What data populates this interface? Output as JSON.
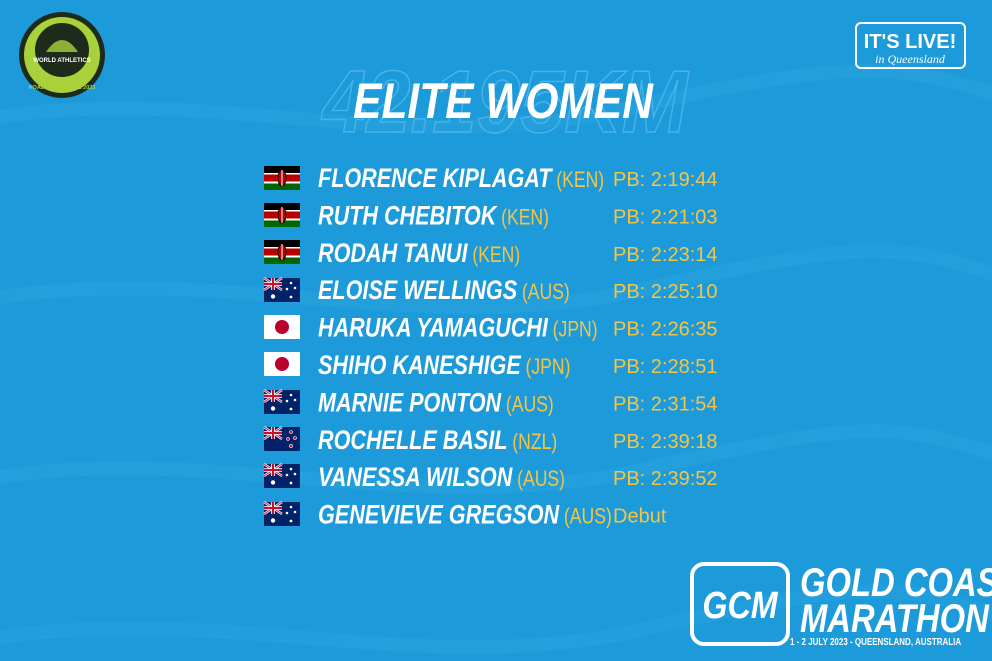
{
  "logos": {
    "world_athletics": {
      "name": "WORLD ATHLETICS",
      "label": "ROAD RACE LABEL 2023"
    },
    "its_live": {
      "headline": "IT'S LIVE!",
      "tagline": "in Queensland"
    }
  },
  "background_text": "42.195KM",
  "title": "ELITE WOMEN",
  "athletes": [
    {
      "name": "FLORENCE KIPLAGAT",
      "country": "(KEN)",
      "pb": "PB: 2:19:44"
    },
    {
      "name": "RUTH CHEBITOK",
      "country": "(KEN)",
      "pb": "PB: 2:21:03"
    },
    {
      "name": "RODAH TANUI",
      "country": "(KEN)",
      "pb": "PB: 2:23:14"
    },
    {
      "name": "ELOISE WELLINGS",
      "country": "(AUS)",
      "pb": "PB: 2:25:10"
    },
    {
      "name": "HARUKA YAMAGUCHI",
      "country": "(JPN)",
      "pb": "PB: 2:26:35"
    },
    {
      "name": "SHIHO KANESHIGE",
      "country": "(JPN)",
      "pb": "PB: 2:28:51"
    },
    {
      "name": "MARNIE PONTON",
      "country": "(AUS)",
      "pb": "PB: 2:31:54"
    },
    {
      "name": "ROCHELLE BASIL",
      "country": "(NZL)",
      "pb": "PB: 2:39:18"
    },
    {
      "name": "VANESSA WILSON",
      "country": "(AUS)",
      "pb": "PB: 2:39:52"
    },
    {
      "name": "GENEVIEVE GREGSON",
      "country": "(AUS)",
      "pb": "Debut"
    }
  ],
  "footer": {
    "monogram": "GCM",
    "line1": "GOLD COAST",
    "line2": "MARATHON",
    "dates": "1 - 2 JULY 2023 - QUEENSLAND, AUSTRALIA"
  }
}
